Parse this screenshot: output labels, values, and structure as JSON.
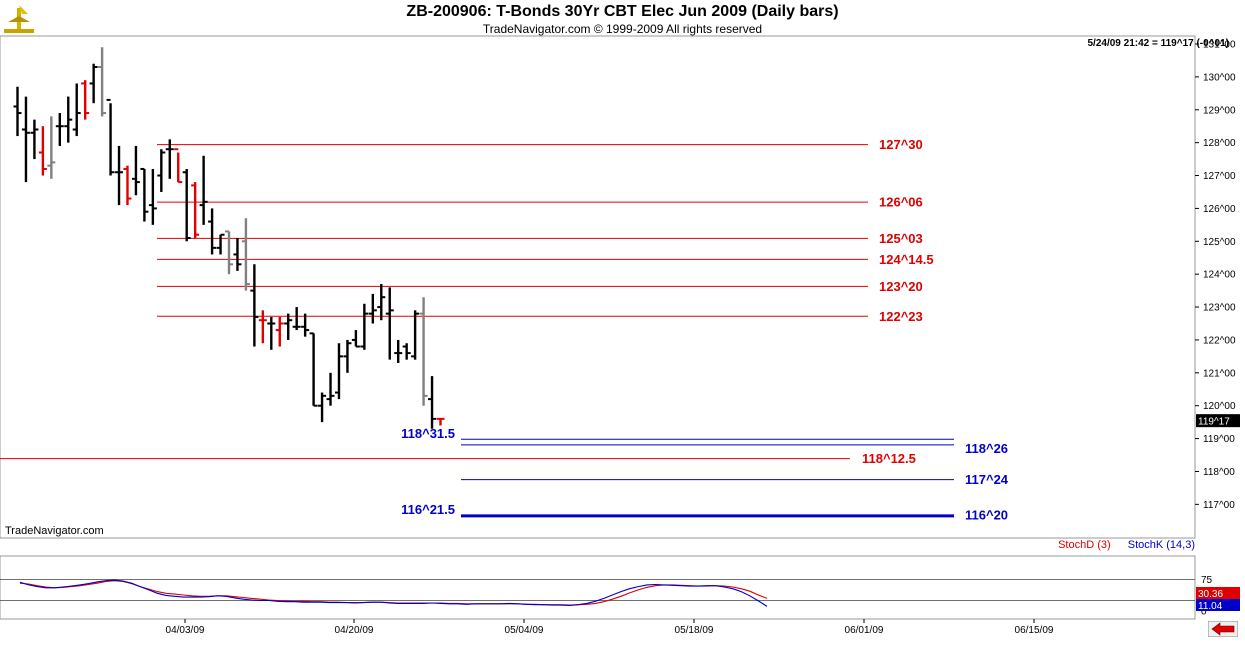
{
  "header": {
    "title": "ZB-200906:  T-Bonds 30Yr CBT Elec Jun 2009  (Daily bars)",
    "copyright": "TradeNavigator.com © 1999-2009 All rights reserved",
    "readout": "5/24/09 21:42 = 119^17 (-0^01)",
    "watermark": "TradeNavigator.com"
  },
  "colors": {
    "up_bar": "#000000",
    "down_bar": "#e00000",
    "grey_bar": "#808080",
    "red_line": "#e00000",
    "blue_line": "#0000c8"
  },
  "chart_data": [
    {
      "type": "ohlc",
      "y_tick_labels": [
        "131^00",
        "130^00",
        "129^00",
        "128^00",
        "127^00",
        "126^00",
        "125^00",
        "124^00",
        "123^00",
        "122^00",
        "121^00",
        "120^00",
        "119^00",
        "118^00",
        "117^00"
      ],
      "ylim": [
        116.6,
        131.1
      ],
      "x_tick_labels": [
        "04/03/09",
        "04/20/09",
        "05/04/09",
        "05/18/09",
        "06/01/09",
        "06/15/09"
      ],
      "last_price_label": "119^17",
      "last_price": 119.53,
      "bars": [
        {
          "o": 129.1,
          "h": 129.7,
          "l": 128.2,
          "c": 128.9,
          "color": "black"
        },
        {
          "o": 128.4,
          "h": 129.4,
          "l": 126.8,
          "c": 128.3,
          "color": "black"
        },
        {
          "o": 128.3,
          "h": 128.7,
          "l": 127.5,
          "c": 128.4,
          "color": "black"
        },
        {
          "o": 127.7,
          "h": 128.5,
          "l": 127.0,
          "c": 127.2,
          "color": "red"
        },
        {
          "o": 127.3,
          "h": 128.8,
          "l": 126.9,
          "c": 127.4,
          "color": "grey"
        },
        {
          "o": 128.5,
          "h": 128.9,
          "l": 127.9,
          "c": 128.5,
          "color": "black"
        },
        {
          "o": 128.5,
          "h": 129.4,
          "l": 128.0,
          "c": 128.7,
          "color": "black"
        },
        {
          "o": 128.4,
          "h": 129.8,
          "l": 128.2,
          "c": 128.9,
          "color": "black"
        },
        {
          "o": 129.8,
          "h": 129.9,
          "l": 128.7,
          "c": 128.9,
          "color": "red"
        },
        {
          "o": 129.8,
          "h": 130.4,
          "l": 129.2,
          "c": 130.3,
          "color": "black"
        },
        {
          "o": 130.3,
          "h": 130.9,
          "l": 128.8,
          "c": 128.9,
          "color": "grey"
        },
        {
          "o": 129.3,
          "h": 129.2,
          "l": 127.0,
          "c": 127.1,
          "color": "black"
        },
        {
          "o": 127.1,
          "h": 127.9,
          "l": 126.1,
          "c": 127.1,
          "color": "black"
        },
        {
          "o": 127.2,
          "h": 127.3,
          "l": 126.1,
          "c": 126.3,
          "color": "red"
        },
        {
          "o": 126.9,
          "h": 127.9,
          "l": 126.4,
          "c": 126.8,
          "color": "black"
        },
        {
          "o": 127.2,
          "h": 127.2,
          "l": 125.6,
          "c": 125.9,
          "color": "black"
        },
        {
          "o": 126.1,
          "h": 127.2,
          "l": 125.5,
          "c": 126.0,
          "color": "black"
        },
        {
          "o": 127.0,
          "h": 127.8,
          "l": 126.5,
          "c": 127.7,
          "color": "black"
        },
        {
          "o": 127.8,
          "h": 128.1,
          "l": 126.9,
          "c": 127.8,
          "color": "black"
        },
        {
          "o": 127.8,
          "h": 127.7,
          "l": 126.8,
          "c": 126.8,
          "color": "red"
        },
        {
          "o": 127.1,
          "h": 127.2,
          "l": 125.0,
          "c": 125.1,
          "color": "black"
        },
        {
          "o": 126.7,
          "h": 126.8,
          "l": 125.1,
          "c": 125.2,
          "color": "red"
        },
        {
          "o": 126.1,
          "h": 127.6,
          "l": 125.5,
          "c": 126.2,
          "color": "black"
        },
        {
          "o": 125.6,
          "h": 126.0,
          "l": 124.6,
          "c": 124.8,
          "color": "black"
        },
        {
          "o": 124.8,
          "h": 125.2,
          "l": 124.6,
          "c": 125.2,
          "color": "black"
        },
        {
          "o": 125.3,
          "h": 125.3,
          "l": 124.0,
          "c": 124.3,
          "color": "grey"
        },
        {
          "o": 124.6,
          "h": 125.1,
          "l": 124.1,
          "c": 124.3,
          "color": "black"
        },
        {
          "o": 125.0,
          "h": 125.7,
          "l": 123.5,
          "c": 123.7,
          "color": "grey"
        },
        {
          "o": 123.5,
          "h": 124.3,
          "l": 121.8,
          "c": 122.7,
          "color": "black"
        },
        {
          "o": 122.6,
          "h": 122.9,
          "l": 121.9,
          "c": 122.6,
          "color": "red"
        },
        {
          "o": 122.5,
          "h": 122.7,
          "l": 121.7,
          "c": 122.5,
          "color": "black"
        },
        {
          "o": 122.3,
          "h": 122.7,
          "l": 121.8,
          "c": 122.5,
          "color": "red"
        },
        {
          "o": 122.5,
          "h": 122.8,
          "l": 122.0,
          "c": 122.6,
          "color": "black"
        },
        {
          "o": 122.4,
          "h": 123.0,
          "l": 122.3,
          "c": 122.4,
          "color": "black"
        },
        {
          "o": 122.4,
          "h": 122.8,
          "l": 122.1,
          "c": 122.3,
          "color": "black"
        },
        {
          "o": 122.2,
          "h": 122.2,
          "l": 120.0,
          "c": 120.0,
          "color": "black"
        },
        {
          "o": 120.0,
          "h": 120.4,
          "l": 119.5,
          "c": 120.3,
          "color": "black"
        },
        {
          "o": 120.2,
          "h": 121.0,
          "l": 120.0,
          "c": 120.3,
          "color": "black"
        },
        {
          "o": 120.4,
          "h": 121.9,
          "l": 120.2,
          "c": 121.5,
          "color": "black"
        },
        {
          "o": 121.5,
          "h": 122.0,
          "l": 121.0,
          "c": 121.9,
          "color": "black"
        },
        {
          "o": 122.0,
          "h": 122.3,
          "l": 121.8,
          "c": 121.8,
          "color": "black"
        },
        {
          "o": 121.8,
          "h": 123.1,
          "l": 121.7,
          "c": 122.8,
          "color": "black"
        },
        {
          "o": 122.8,
          "h": 123.4,
          "l": 122.5,
          "c": 122.9,
          "color": "black"
        },
        {
          "o": 123.0,
          "h": 123.7,
          "l": 122.6,
          "c": 123.3,
          "color": "black"
        },
        {
          "o": 122.8,
          "h": 123.6,
          "l": 121.4,
          "c": 122.9,
          "color": "black"
        },
        {
          "o": 121.6,
          "h": 122.0,
          "l": 121.3,
          "c": 121.6,
          "color": "black"
        },
        {
          "o": 121.8,
          "h": 121.9,
          "l": 121.4,
          "c": 121.6,
          "color": "black"
        },
        {
          "o": 121.5,
          "h": 122.9,
          "l": 121.4,
          "c": 122.8,
          "color": "black"
        },
        {
          "o": 122.8,
          "h": 123.3,
          "l": 120.0,
          "c": 120.3,
          "color": "grey"
        },
        {
          "o": 120.2,
          "h": 120.9,
          "l": 119.3,
          "c": 119.6,
          "color": "black"
        },
        {
          "o": 119.6,
          "h": 119.6,
          "l": 119.4,
          "c": 119.6,
          "color": "red"
        }
      ],
      "levels": [
        {
          "label": "127^30",
          "value": 127.94,
          "color": "red",
          "span": "mid"
        },
        {
          "label": "126^06",
          "value": 126.19,
          "color": "red",
          "span": "mid"
        },
        {
          "label": "125^03",
          "value": 125.09,
          "color": "red",
          "span": "mid"
        },
        {
          "label": "124^14.5",
          "value": 124.45,
          "color": "red",
          "span": "mid"
        },
        {
          "label": "123^20",
          "value": 123.63,
          "color": "red",
          "span": "mid"
        },
        {
          "label": "122^23",
          "value": 122.72,
          "color": "red",
          "span": "mid"
        },
        {
          "label": "118^31.5",
          "value": 118.98,
          "color": "blue",
          "span": "right",
          "side": "left"
        },
        {
          "label": "118^26",
          "value": 118.81,
          "color": "blue",
          "span": "right",
          "side": "right"
        },
        {
          "label": "118^12.5",
          "value": 118.39,
          "color": "red",
          "span": "full",
          "side": "right"
        },
        {
          "label": "117^24",
          "value": 117.75,
          "color": "blue",
          "span": "right",
          "side": "right"
        },
        {
          "label": "116^21.5",
          "value": 116.67,
          "color": "blue",
          "span": "right",
          "side": "left"
        },
        {
          "label": "116^20",
          "value": 116.63,
          "color": "blue",
          "span": "right",
          "side": "right"
        }
      ]
    },
    {
      "type": "line",
      "ylim": [
        0,
        100
      ],
      "y_tick_labels": [
        "75",
        "25",
        "0"
      ],
      "levels": [
        75,
        25
      ],
      "series": [
        {
          "name": "StochD (3)",
          "color": "#e00000",
          "last_label": "30.36",
          "values": [
            66,
            64,
            60,
            57,
            55,
            56,
            58,
            60,
            63,
            66,
            70,
            72,
            70,
            65,
            58,
            52,
            46,
            42,
            40,
            38,
            36,
            35,
            35,
            36,
            36,
            34,
            32,
            30,
            28,
            26,
            25,
            24,
            23,
            23,
            22,
            22,
            21,
            21,
            20,
            20,
            20,
            21,
            21,
            20,
            19,
            19,
            19,
            19,
            19,
            19,
            18,
            18,
            17,
            17,
            17,
            17,
            17,
            17,
            17,
            16,
            16,
            15,
            15,
            15,
            14,
            15,
            16,
            18,
            22,
            28,
            35,
            43,
            50,
            56,
            60,
            62,
            62,
            61,
            60,
            59,
            59,
            60,
            59,
            57,
            53,
            47,
            38,
            30
          ]
        },
        {
          "name": "StochK (14,3)",
          "color": "#0000c8",
          "last_label": "11.04",
          "values": [
            68,
            62,
            58,
            55,
            55,
            57,
            59,
            62,
            65,
            69,
            72,
            73,
            71,
            66,
            58,
            50,
            42,
            37,
            35,
            33,
            33,
            33,
            34,
            36,
            35,
            31,
            28,
            26,
            25,
            25,
            23,
            22,
            22,
            21,
            21,
            21,
            20,
            20,
            20,
            19,
            20,
            21,
            21,
            19,
            18,
            18,
            18,
            18,
            19,
            18,
            17,
            17,
            16,
            17,
            17,
            17,
            17,
            18,
            17,
            16,
            15,
            15,
            14,
            14,
            13,
            15,
            18,
            23,
            30,
            38,
            46,
            53,
            58,
            62,
            63,
            62,
            61,
            60,
            59,
            59,
            60,
            60,
            57,
            53,
            46,
            36,
            24,
            11
          ]
        }
      ]
    }
  ],
  "stoch_legend": {
    "d": "StochD (3)",
    "k": "StochK (14,3)"
  }
}
